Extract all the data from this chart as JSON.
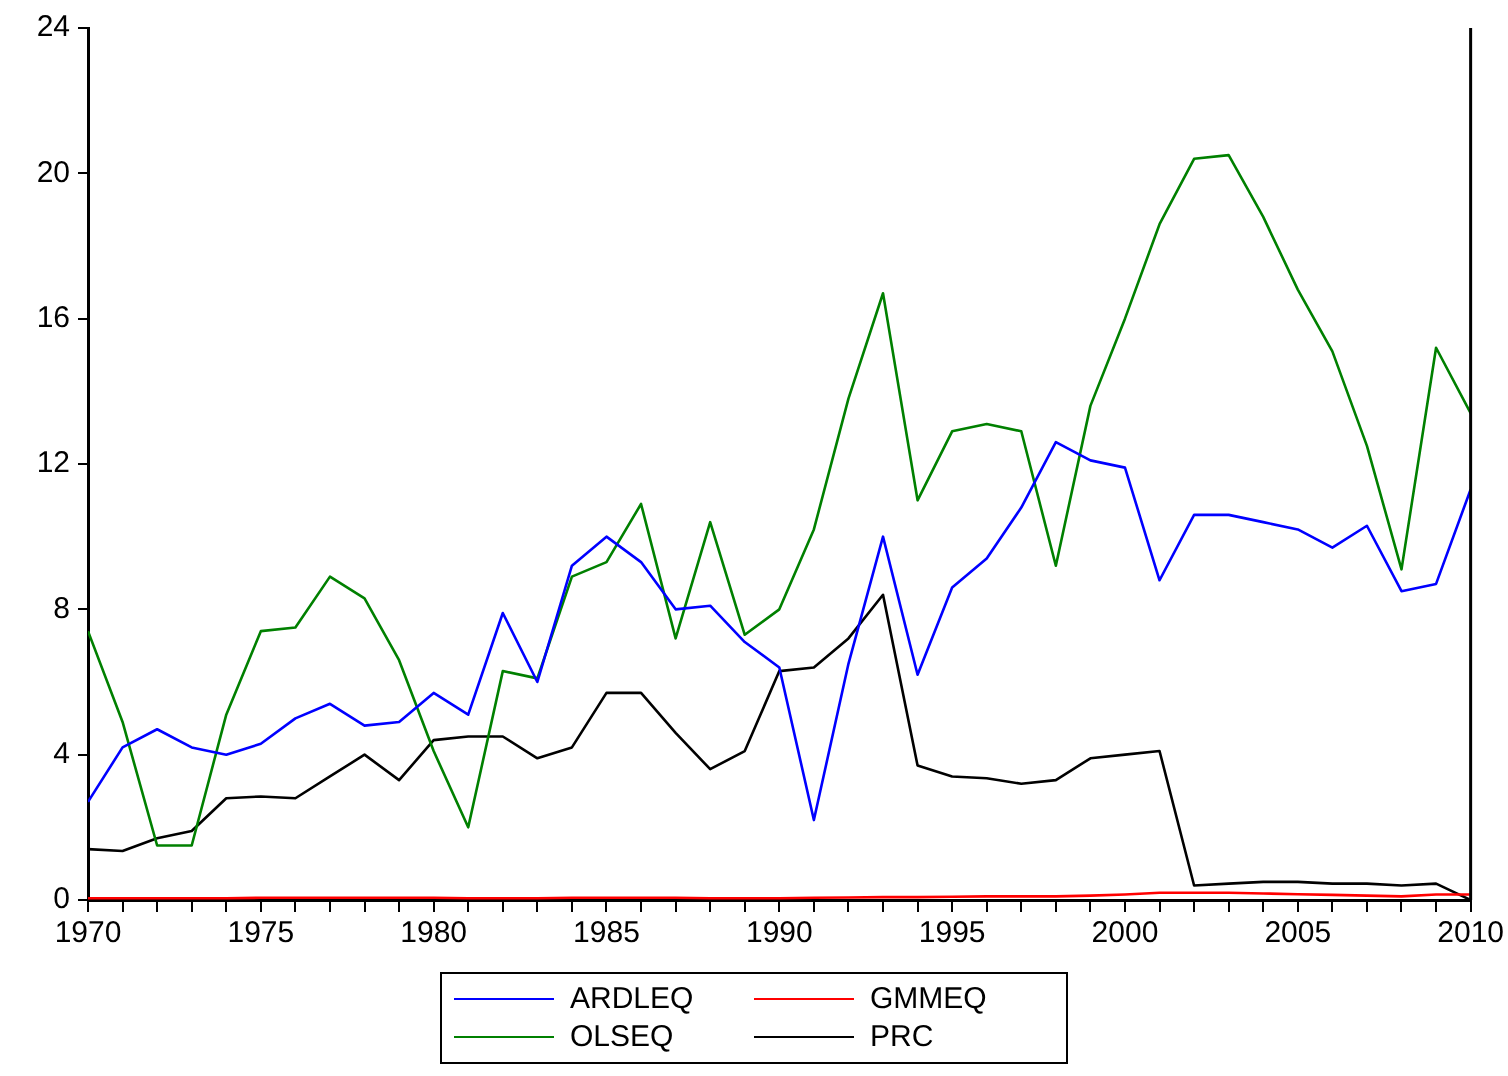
{
  "chart_data": {
    "type": "line",
    "x": [
      1970,
      1971,
      1972,
      1973,
      1974,
      1975,
      1976,
      1977,
      1978,
      1979,
      1980,
      1981,
      1982,
      1983,
      1984,
      1985,
      1986,
      1987,
      1988,
      1989,
      1990,
      1991,
      1992,
      1993,
      1994,
      1995,
      1996,
      1997,
      1998,
      1999,
      2000,
      2001,
      2002,
      2003,
      2004,
      2005,
      2006,
      2007,
      2008,
      2009,
      2010
    ],
    "series": [
      {
        "name": "ARDLEQ",
        "color": "#0000ff",
        "values": [
          2.7,
          4.2,
          4.7,
          4.2,
          4.0,
          4.3,
          5.0,
          5.4,
          4.8,
          4.9,
          5.7,
          5.1,
          7.9,
          6.0,
          9.2,
          10.0,
          9.3,
          8.0,
          8.1,
          7.1,
          6.4,
          2.2,
          6.5,
          10.0,
          6.2,
          8.6,
          9.4,
          10.8,
          12.6,
          12.1,
          11.9,
          8.8,
          10.6,
          10.6,
          10.4,
          10.2,
          9.7,
          10.3,
          8.5,
          8.7,
          11.3
        ]
      },
      {
        "name": "GMMEQ",
        "color": "#ff0000",
        "values": [
          0.05,
          0.05,
          0.05,
          0.05,
          0.05,
          0.06,
          0.06,
          0.06,
          0.06,
          0.06,
          0.06,
          0.05,
          0.05,
          0.05,
          0.06,
          0.06,
          0.06,
          0.06,
          0.05,
          0.05,
          0.05,
          0.06,
          0.07,
          0.08,
          0.08,
          0.09,
          0.1,
          0.1,
          0.1,
          0.12,
          0.15,
          0.2,
          0.2,
          0.2,
          0.18,
          0.16,
          0.14,
          0.12,
          0.1,
          0.15,
          0.15
        ]
      },
      {
        "name": "OLSEQ",
        "color": "#008000",
        "values": [
          7.4,
          4.9,
          1.5,
          1.5,
          5.1,
          7.4,
          7.5,
          8.9,
          8.3,
          6.6,
          4.1,
          2.0,
          6.3,
          6.1,
          8.9,
          9.3,
          10.9,
          7.2,
          10.4,
          7.3,
          8.0,
          10.2,
          13.8,
          16.7,
          11.0,
          12.9,
          13.1,
          12.9,
          9.2,
          13.6,
          16.0,
          18.6,
          20.4,
          20.5,
          18.8,
          16.8,
          15.1,
          12.5,
          9.1,
          15.2,
          13.4
        ]
      },
      {
        "name": "PRC",
        "color": "#000000",
        "values": [
          1.4,
          1.35,
          1.7,
          1.9,
          2.8,
          2.85,
          2.8,
          3.4,
          4.0,
          3.3,
          4.4,
          4.5,
          4.5,
          3.9,
          4.2,
          5.7,
          5.7,
          4.6,
          3.6,
          4.1,
          6.3,
          6.4,
          7.2,
          8.4,
          3.7,
          3.4,
          3.35,
          3.2,
          3.3,
          3.9,
          4.0,
          4.1,
          0.4,
          0.45,
          0.5,
          0.5,
          0.45,
          0.45,
          0.4,
          0.45,
          0.0
        ]
      }
    ],
    "xlim": [
      1970,
      2010
    ],
    "xticks": [
      1970,
      {
        "value": 1971,
        "label": null
      },
      {
        "value": 1972,
        "label": null
      },
      {
        "value": 1973,
        "label": null
      },
      {
        "value": 1974,
        "label": null
      },
      1975,
      {
        "value": 1976,
        "label": null
      },
      {
        "value": 1977,
        "label": null
      },
      {
        "value": 1978,
        "label": null
      },
      {
        "value": 1979,
        "label": null
      },
      1980,
      {
        "value": 1981,
        "label": null
      },
      {
        "value": 1982,
        "label": null
      },
      {
        "value": 1983,
        "label": null
      },
      {
        "value": 1984,
        "label": null
      },
      1985,
      {
        "value": 1986,
        "label": null
      },
      {
        "value": 1987,
        "label": null
      },
      {
        "value": 1988,
        "label": null
      },
      {
        "value": 1989,
        "label": null
      },
      1990,
      {
        "value": 1991,
        "label": null
      },
      {
        "value": 1992,
        "label": null
      },
      {
        "value": 1993,
        "label": null
      },
      {
        "value": 1994,
        "label": null
      },
      1995,
      {
        "value": 1996,
        "label": null
      },
      {
        "value": 1997,
        "label": null
      },
      {
        "value": 1998,
        "label": null
      },
      {
        "value": 1999,
        "label": null
      },
      2000,
      {
        "value": 2001,
        "label": null
      },
      {
        "value": 2002,
        "label": null
      },
      {
        "value": 2003,
        "label": null
      },
      {
        "value": 2004,
        "label": null
      },
      2005,
      {
        "value": 2006,
        "label": null
      },
      {
        "value": 2007,
        "label": null
      },
      {
        "value": 2008,
        "label": null
      },
      {
        "value": 2009,
        "label": null
      },
      2010
    ],
    "ylim": [
      0,
      24
    ],
    "yticks": [
      0,
      4,
      8,
      12,
      16,
      20,
      24
    ],
    "grid": false,
    "legend": "bottom",
    "marker": "none",
    "line_style": "solid"
  }
}
